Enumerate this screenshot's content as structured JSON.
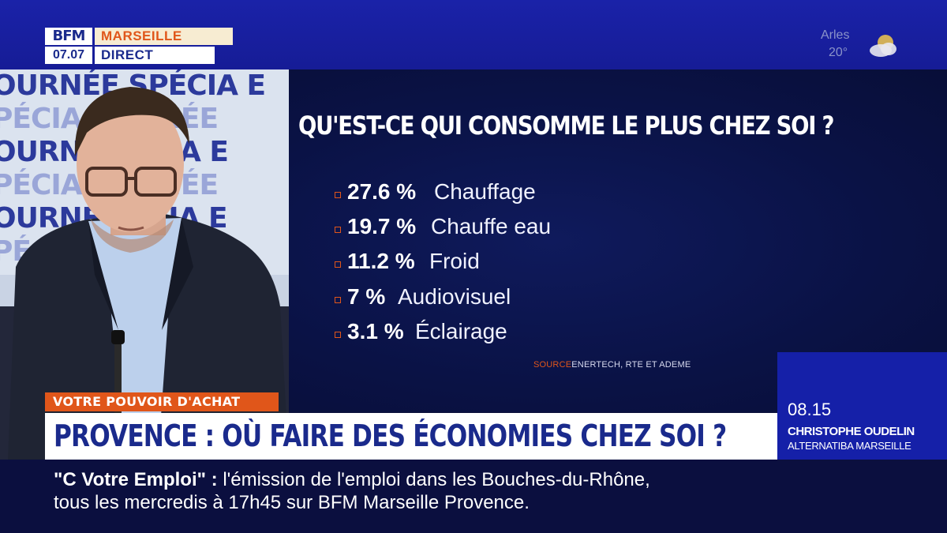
{
  "channel": {
    "logo": "BFM",
    "city": "MARSEILLE",
    "time": "07.07",
    "live": "DIRECT"
  },
  "weather": {
    "city": "Arles",
    "temp": "20°",
    "icon": "partly-cloudy-icon"
  },
  "backdrop": {
    "lines": [
      "OURNÉE SPÉCIA E",
      "PÉCIA OURNÉE",
      "OURN SPÉCIA E",
      "PÉCIA OURNÉE",
      "OURNÉ PÉCIA E",
      "PÉCIA OURNÉE"
    ]
  },
  "infographic": {
    "title": "QU'EST-CE QUI CONSOMME LE PLUS CHEZ SOI ?",
    "items": [
      {
        "pct": "27.6 %",
        "label": "Chauffage"
      },
      {
        "pct": "19.7 %",
        "label": "Chauffe eau"
      },
      {
        "pct": "11.2 %",
        "label": "Froid"
      },
      {
        "pct": "7 %",
        "label": "Audiovisuel"
      },
      {
        "pct": "3.1 %",
        "label": "Éclairage"
      }
    ],
    "source_key": "SOURCE",
    "source_value": "ENERTECH, RTE ET ADEME"
  },
  "guest": {
    "time": "08.15",
    "name": "CHRISTOPHE OUDELIN",
    "org": "ALTERNATIBA MARSEILLE"
  },
  "lower_third": {
    "kicker": "VOTRE POUVOIR D'ACHAT",
    "headline": "PROVENCE : OÙ FAIRE DES ÉCONOMIES CHEZ SOI ?"
  },
  "ticker": {
    "bold": "\"C Votre Emploi\"  :",
    "line1": " l'émission de l'emploi dans les Bouches-du-Rhône,",
    "line2": "tous les mercredis à 17h45 sur BFM Marseille Provence."
  },
  "colors": {
    "brand_blue": "#1a2a8c",
    "accent_orange": "#e0561a",
    "panel_blue": "#1520a8"
  }
}
